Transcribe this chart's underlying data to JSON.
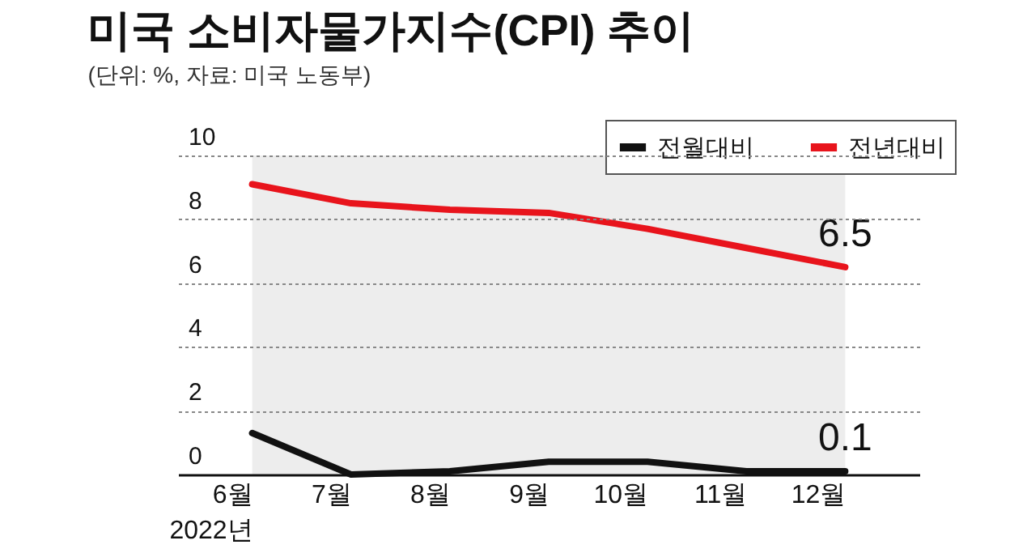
{
  "chart_data": {
    "type": "line",
    "title": "미국 소비자물가지수(CPI) 추이",
    "subtitle": "(단위: %, 자료: 미국 노동부)",
    "categories": [
      "6월\n2022년",
      "7월",
      "8월",
      "9월",
      "10월",
      "11월",
      "12월"
    ],
    "series": [
      {
        "name": "전월대비",
        "color": "#111111",
        "values": [
          1.3,
          0.0,
          0.1,
          0.4,
          0.4,
          0.1,
          0.1
        ],
        "value_labels": [
          null,
          null,
          null,
          null,
          null,
          null,
          "0.1"
        ]
      },
      {
        "name": "전년대비",
        "color": "#e8141c",
        "values": [
          9.1,
          8.5,
          8.3,
          8.2,
          7.7,
          7.1,
          6.5
        ],
        "value_labels": [
          null,
          null,
          null,
          null,
          null,
          null,
          "6.5"
        ]
      }
    ],
    "bands": [
      {
        "axis": "x",
        "from": "6월\n2022년",
        "to": "12월",
        "color": "#ededed"
      }
    ],
    "ylim": [
      0,
      10
    ],
    "yticks": [
      0,
      2,
      4,
      6,
      8,
      10
    ],
    "grid": "y",
    "legend": "top right",
    "marker": "none",
    "line_style": "solid"
  }
}
